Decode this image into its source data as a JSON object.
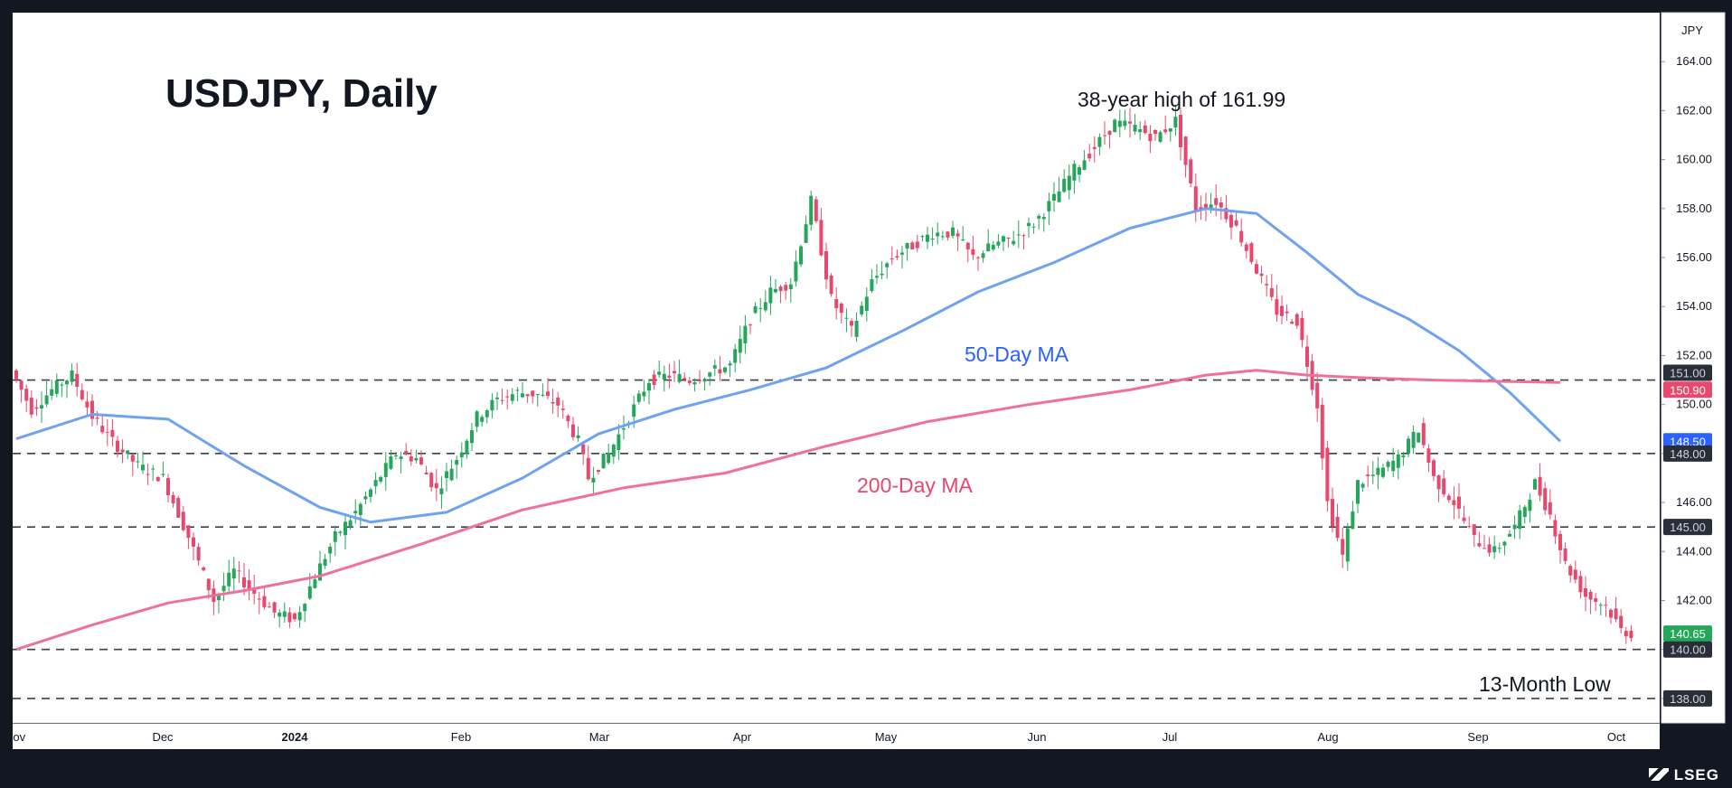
{
  "chart_data": {
    "type": "candlestick",
    "title": "USDJPY, Daily",
    "currency_label": "JPY",
    "ylim": [
      137,
      166
    ],
    "y_ticks": [
      138,
      140,
      142,
      144,
      146,
      148,
      150,
      152,
      154,
      156,
      158,
      160,
      162,
      164
    ],
    "x_months": [
      {
        "label": "Nov",
        "bold": false
      },
      {
        "label": "Dec",
        "bold": false
      },
      {
        "label": "2024",
        "bold": true
      },
      {
        "label": "Feb",
        "bold": false
      },
      {
        "label": "Mar",
        "bold": false
      },
      {
        "label": "Apr",
        "bold": false
      },
      {
        "label": "May",
        "bold": false
      },
      {
        "label": "Jun",
        "bold": false
      },
      {
        "label": "Jul",
        "bold": false
      },
      {
        "label": "Aug",
        "bold": false
      },
      {
        "label": "Sep",
        "bold": false
      },
      {
        "label": "Oct",
        "bold": false
      }
    ],
    "price_path": [
      [
        0,
        151.4
      ],
      [
        4,
        149.8
      ],
      [
        8,
        150.6
      ],
      [
        12,
        151.2
      ],
      [
        16,
        149.5
      ],
      [
        20,
        148.5
      ],
      [
        25,
        147.5
      ],
      [
        30,
        147.0
      ],
      [
        35,
        144.6
      ],
      [
        40,
        142.0
      ],
      [
        44,
        143.2
      ],
      [
        48,
        142.3
      ],
      [
        52,
        141.5
      ],
      [
        56,
        141.2
      ],
      [
        60,
        143.0
      ],
      [
        64,
        144.6
      ],
      [
        68,
        145.6
      ],
      [
        72,
        146.8
      ],
      [
        76,
        148.0
      ],
      [
        80,
        147.8
      ],
      [
        84,
        146.5
      ],
      [
        88,
        147.8
      ],
      [
        92,
        149.5
      ],
      [
        96,
        150.2
      ],
      [
        100,
        150.5
      ],
      [
        104,
        150.4
      ],
      [
        108,
        150.0
      ],
      [
        112,
        148.5
      ],
      [
        114,
        147.0
      ],
      [
        118,
        148.0
      ],
      [
        122,
        149.5
      ],
      [
        126,
        151.0
      ],
      [
        130,
        151.2
      ],
      [
        134,
        151.0
      ],
      [
        138,
        151.3
      ],
      [
        142,
        151.6
      ],
      [
        146,
        153.5
      ],
      [
        150,
        154.6
      ],
      [
        154,
        155.0
      ],
      [
        158,
        158.3
      ],
      [
        162,
        154.3
      ],
      [
        166,
        153.0
      ],
      [
        170,
        155.0
      ],
      [
        174,
        156.0
      ],
      [
        178,
        156.5
      ],
      [
        182,
        157.0
      ],
      [
        186,
        157.0
      ],
      [
        190,
        156.0
      ],
      [
        194,
        156.5
      ],
      [
        198,
        156.8
      ],
      [
        202,
        157.4
      ],
      [
        206,
        158.4
      ],
      [
        210,
        159.6
      ],
      [
        214,
        160.5
      ],
      [
        218,
        161.5
      ],
      [
        222,
        161.3
      ],
      [
        226,
        160.9
      ],
      [
        230,
        161.6
      ],
      [
        234,
        158.0
      ],
      [
        238,
        158.3
      ],
      [
        242,
        157.2
      ],
      [
        246,
        155.5
      ],
      [
        250,
        153.8
      ],
      [
        254,
        153.4
      ],
      [
        258,
        150.0
      ],
      [
        260,
        146.0
      ],
      [
        263,
        143.8
      ],
      [
        266,
        146.8
      ],
      [
        270,
        147.2
      ],
      [
        274,
        147.8
      ],
      [
        278,
        149.0
      ],
      [
        281,
        147.0
      ],
      [
        285,
        146.0
      ],
      [
        289,
        144.5
      ],
      [
        293,
        144.0
      ],
      [
        297,
        145.0
      ],
      [
        301,
        146.8
      ],
      [
        304,
        145.5
      ],
      [
        307,
        143.5
      ],
      [
        311,
        142.2
      ],
      [
        315,
        141.8
      ],
      [
        318,
        140.8
      ],
      [
        320,
        140.65
      ]
    ],
    "series": [
      {
        "name": "50-Day MA",
        "color": "#6fa2f0",
        "points": [
          [
            0,
            148.6
          ],
          [
            15,
            149.6
          ],
          [
            30,
            149.4
          ],
          [
            45,
            147.5
          ],
          [
            60,
            145.8
          ],
          [
            70,
            145.2
          ],
          [
            85,
            145.6
          ],
          [
            100,
            147.0
          ],
          [
            115,
            148.8
          ],
          [
            130,
            149.8
          ],
          [
            145,
            150.6
          ],
          [
            160,
            151.5
          ],
          [
            175,
            153.0
          ],
          [
            190,
            154.6
          ],
          [
            205,
            155.8
          ],
          [
            220,
            157.2
          ],
          [
            235,
            158.0
          ],
          [
            245,
            157.8
          ],
          [
            255,
            156.2
          ],
          [
            265,
            154.5
          ],
          [
            275,
            153.5
          ],
          [
            285,
            152.2
          ],
          [
            295,
            150.5
          ],
          [
            305,
            148.5
          ]
        ]
      },
      {
        "name": "200-Day MA",
        "color": "#f0709c",
        "points": [
          [
            0,
            140.0
          ],
          [
            15,
            141.0
          ],
          [
            30,
            141.9
          ],
          [
            45,
            142.4
          ],
          [
            60,
            143.0
          ],
          [
            80,
            144.3
          ],
          [
            100,
            145.7
          ],
          [
            120,
            146.6
          ],
          [
            140,
            147.2
          ],
          [
            160,
            148.3
          ],
          [
            180,
            149.3
          ],
          [
            200,
            150.0
          ],
          [
            220,
            150.6
          ],
          [
            235,
            151.2
          ],
          [
            245,
            151.4
          ],
          [
            255,
            151.2
          ],
          [
            265,
            151.1
          ],
          [
            280,
            151.0
          ],
          [
            305,
            150.9
          ]
        ]
      }
    ],
    "levels": [
      151.0,
      148.0,
      145.0,
      140.0,
      138.0
    ],
    "axis_labels": [
      {
        "text": "151.00",
        "bg": "#2a2e39",
        "color": "#d1d4dc"
      },
      {
        "text": "150.90",
        "bg": "#e6486e",
        "color": "#ffffff"
      },
      {
        "text": "148.50",
        "bg": "#2962ff",
        "color": "#ffffff"
      },
      {
        "text": "148.00",
        "bg": "#2a2e39",
        "color": "#d1d4dc"
      },
      {
        "text": "145.00",
        "bg": "#2a2e39",
        "color": "#d1d4dc"
      },
      {
        "text": "140.65",
        "bg": "#26a65b",
        "color": "#ffffff"
      },
      {
        "text": "140.00",
        "bg": "#2a2e39",
        "color": "#d1d4dc"
      },
      {
        "text": "138.00",
        "bg": "#2a2e39",
        "color": "#d1d4dc"
      }
    ],
    "annotations": [
      {
        "text": "38-year high of 161.99",
        "color": "#131722"
      },
      {
        "text": "50-Day MA",
        "color": "#2962ff"
      },
      {
        "text": "200-Day MA",
        "color": "#e6486e"
      },
      {
        "text": "13-Month Low",
        "color": "#131722"
      }
    ],
    "colors": {
      "up": "#26a65b",
      "down": "#e6486e"
    }
  },
  "branding": {
    "name": "LSEG"
  }
}
